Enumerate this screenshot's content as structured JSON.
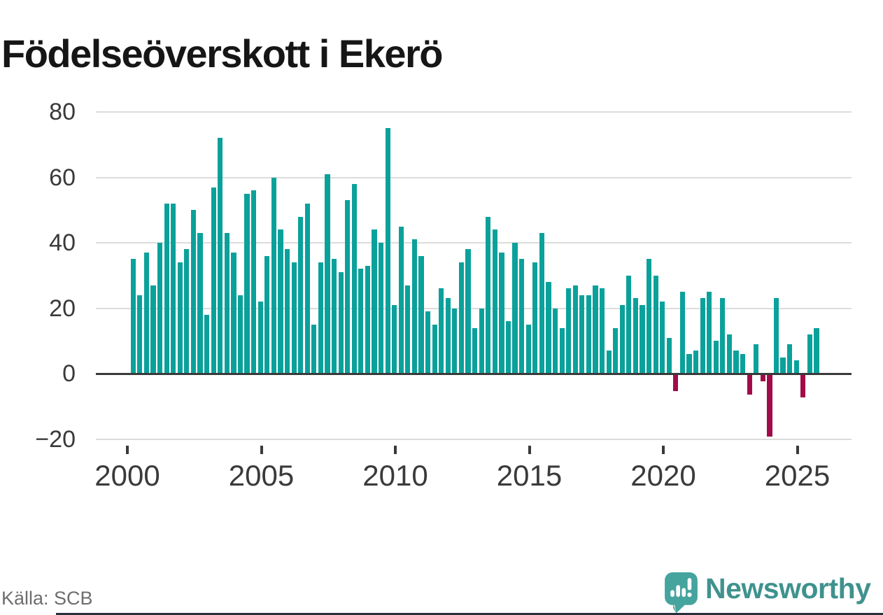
{
  "title": "Födelseöverskott i Ekerö",
  "footer": {
    "source": "Källa: SCB",
    "brand": "Newsworthy"
  },
  "colors": {
    "positive_bar": "#0ba19b",
    "negative_bar": "#a20b49",
    "title_text": "#161616",
    "axis_text": "#3a3a3a",
    "gridline": "#dcdcdc",
    "zero_line": "#3a3a3a",
    "source_text": "#6e6e6e",
    "brand_teal": "#3f928e",
    "logo_icon_teal": "#45a49e"
  },
  "chart_data": {
    "type": "bar",
    "title": "Födelseöverskott i Ekerö",
    "x_period": "quarterly",
    "x_range": [
      "2000 Q1",
      "2025 Q3"
    ],
    "ylim": [
      -20,
      80
    ],
    "yticks": [
      -20,
      0,
      20,
      40,
      60,
      80
    ],
    "xticks": [
      2000,
      2005,
      2010,
      2015,
      2020,
      2025
    ],
    "grid": true,
    "legend": "none",
    "years": [
      {
        "year": 2000,
        "values": [
          35,
          24,
          37,
          27
        ]
      },
      {
        "year": 2001,
        "values": [
          40,
          52,
          52,
          34
        ]
      },
      {
        "year": 2002,
        "values": [
          38,
          50,
          43,
          18
        ]
      },
      {
        "year": 2003,
        "values": [
          57,
          72,
          43,
          37
        ]
      },
      {
        "year": 2004,
        "values": [
          24,
          55,
          56,
          22
        ]
      },
      {
        "year": 2005,
        "values": [
          36,
          60,
          44,
          38
        ]
      },
      {
        "year": 2006,
        "values": [
          34,
          48,
          52,
          15
        ]
      },
      {
        "year": 2007,
        "values": [
          34,
          61,
          35,
          31
        ]
      },
      {
        "year": 2008,
        "values": [
          53,
          58,
          32,
          33
        ]
      },
      {
        "year": 2009,
        "values": [
          44,
          40,
          75,
          21
        ]
      },
      {
        "year": 2010,
        "values": [
          45,
          27,
          41,
          36
        ]
      },
      {
        "year": 2011,
        "values": [
          19,
          15,
          26,
          23
        ]
      },
      {
        "year": 2012,
        "values": [
          20,
          34,
          38,
          14
        ]
      },
      {
        "year": 2013,
        "values": [
          20,
          48,
          44,
          37
        ]
      },
      {
        "year": 2014,
        "values": [
          16,
          40,
          35,
          15
        ]
      },
      {
        "year": 2015,
        "values": [
          34,
          43,
          28,
          20
        ]
      },
      {
        "year": 2016,
        "values": [
          14,
          26,
          27,
          24
        ]
      },
      {
        "year": 2017,
        "values": [
          24,
          27,
          26,
          7
        ]
      },
      {
        "year": 2018,
        "values": [
          14,
          21,
          30,
          23
        ]
      },
      {
        "year": 2019,
        "values": [
          21,
          35,
          30,
          22
        ]
      },
      {
        "year": 2020,
        "values": [
          11,
          -5,
          25,
          6
        ]
      },
      {
        "year": 2021,
        "values": [
          7,
          23,
          25,
          10
        ]
      },
      {
        "year": 2022,
        "values": [
          23,
          12,
          7,
          6
        ]
      },
      {
        "year": 2023,
        "values": [
          -6,
          9,
          -2,
          -19
        ]
      },
      {
        "year": 2024,
        "values": [
          23,
          5,
          9,
          4
        ]
      },
      {
        "year": 2025,
        "values": [
          -7,
          12,
          14
        ]
      }
    ]
  }
}
